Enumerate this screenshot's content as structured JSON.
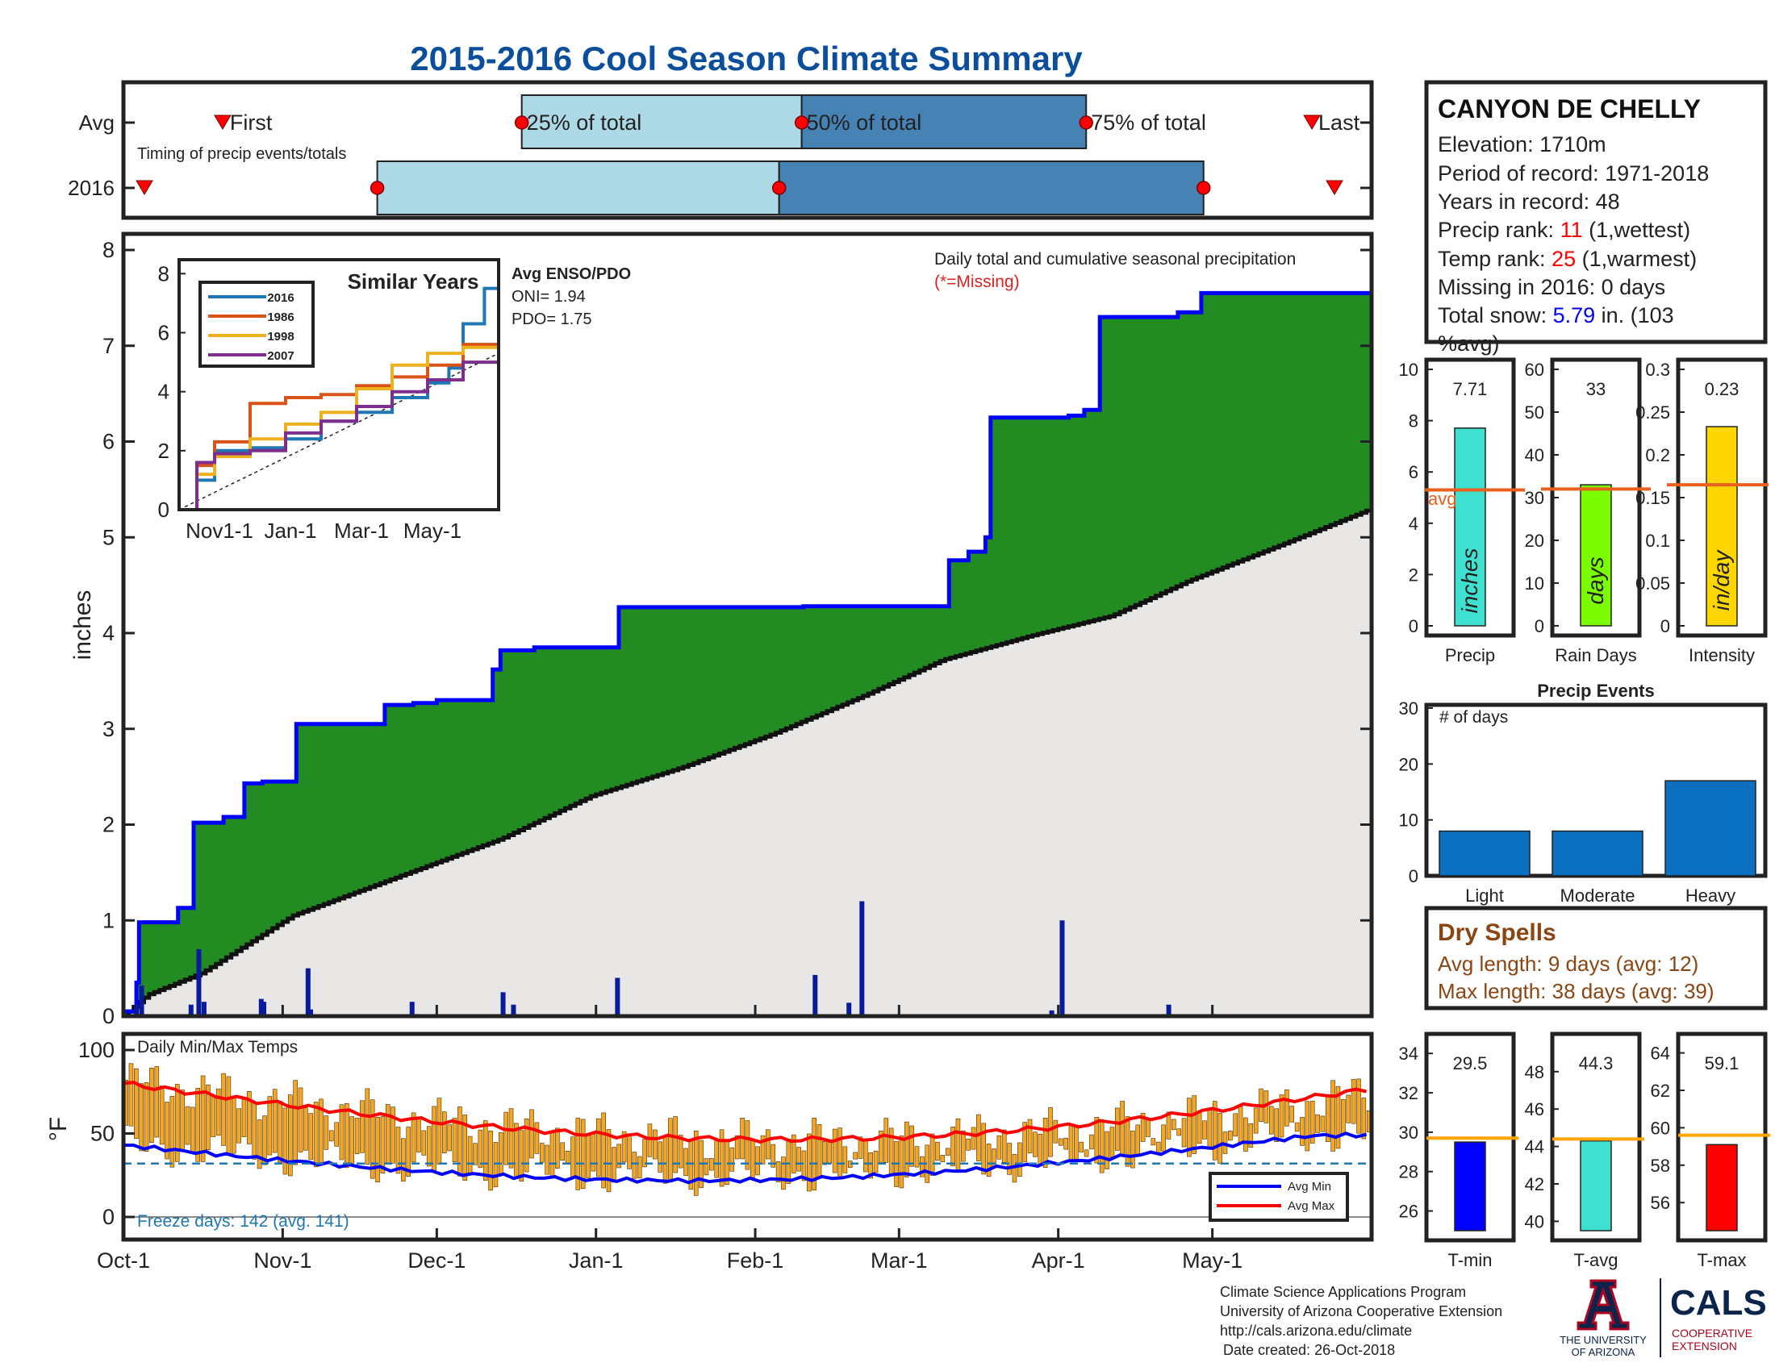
{
  "title": "2015-2016 Cool Season Climate Summary",
  "colors": {
    "title": "#0b4f9c",
    "green": "#228b22",
    "blue_line": "#0000ff",
    "avg_fill": "#e8e7e6",
    "daily_bar": "#0a1a9c",
    "light_blue": "#add8e6",
    "steel_blue": "#4682b4",
    "event_red": "#ff0000",
    "avg_line": "#e8601c",
    "bar_turquoise": "#40e0d0",
    "bar_lime": "#7cfc00",
    "bar_gold": "#ffd700",
    "events_bar": "#0a6fbf",
    "dry_brown": "#8b4513",
    "temp_orange": "#f5a623",
    "tmin_blue": "#0000ff",
    "tmax_red": "#ff0000",
    "freeze_blue": "#1f77b4",
    "rank_red": "#ff0000",
    "snow_blue": "#0000ff"
  },
  "timing": {
    "rows": [
      "Avg",
      "2016"
    ],
    "caption": "Timing of precip events/totals",
    "labels": {
      "first": "First",
      "p25": "25% of total",
      "p50": "50% of total",
      "p75": "75% of total",
      "last": "Last"
    },
    "avg": {
      "first": 20,
      "p25": 85,
      "p50": 147,
      "p75": 210,
      "last": 260
    },
    "y2016": {
      "first": 5,
      "p25": 53,
      "p50": 142,
      "p75": 236,
      "last": 265
    },
    "range": [
      0,
      250
    ]
  },
  "station": {
    "name": "CANYON DE CHELLY",
    "elevation": "Elevation: 1710m",
    "period": "Period of record: 1971-2018",
    "years": "Years in record: 48",
    "precip_rank_label": "Precip rank:",
    "precip_rank": "11",
    "precip_rank_note": "(1,wettest)",
    "temp_rank_label": "Temp rank:",
    "temp_rank": "25",
    "temp_rank_note": "(1,warmest)",
    "missing": "Missing in 2016: 0 days",
    "snow_label": "Total snow:",
    "snow_value": "5.79",
    "snow_note_1": "in. (103",
    "snow_note_2": "%avg)"
  },
  "main": {
    "ylabel": "inches",
    "legend_line1": "Daily total and cumulative seasonal precipitation",
    "legend_line2": "(*=Missing)",
    "y_ticks": [
      "0",
      "1",
      "2",
      "3",
      "4",
      "5",
      "6",
      "7",
      "8"
    ],
    "ylim": [
      0,
      8
    ],
    "x_ticks": [
      "Oct-1",
      "Nov-1",
      "Dec-1",
      "Jan-1",
      "Feb-1",
      "Mar-1",
      "Apr-1",
      "May-1"
    ],
    "x_tick_days": [
      0,
      31,
      61,
      92,
      123,
      151,
      182,
      212
    ],
    "days": 243
  },
  "inset": {
    "title": "Similar Years",
    "y_ticks": [
      "0",
      "2",
      "4",
      "6",
      "8"
    ],
    "x_ticks": [
      "Nov1-1",
      "Jan-1",
      "Mar-1",
      "May-1"
    ],
    "legend": [
      "2016",
      "1986",
      "1998",
      "2007"
    ],
    "enso_title": "Avg ENSO/PDO",
    "oni": "ONI= 1.94",
    "pdo": "PDO= 1.75"
  },
  "bars": {
    "precip": {
      "value": "7.71",
      "num": 7.71,
      "avg": 5.3,
      "ylim": [
        0,
        10
      ],
      "ticks": [
        "0",
        "2",
        "4",
        "6",
        "8",
        "10"
      ],
      "unit": "inches",
      "label": "Precip",
      "avg_label": "avg"
    },
    "rain_days": {
      "value": "33",
      "num": 33,
      "avg": 32,
      "ylim": [
        0,
        60
      ],
      "ticks": [
        "0",
        "10",
        "20",
        "30",
        "40",
        "50",
        "60"
      ],
      "unit": "days",
      "label": "Rain Days"
    },
    "intensity": {
      "value": "0.23",
      "num": 0.233,
      "avg": 0.165,
      "ylim": [
        0,
        0.3
      ],
      "ticks": [
        "0",
        "0.05",
        "0.1",
        "0.15",
        "0.2",
        "0.25",
        "0.3"
      ],
      "unit": "in/day",
      "label": "Intensity"
    }
  },
  "events": {
    "title": "Precip Events",
    "ylabel": "# of days",
    "categories": [
      "Light",
      "Moderate",
      "Heavy"
    ],
    "values": [
      8,
      8,
      17
    ],
    "ylim": [
      0,
      30
    ],
    "ticks": [
      "0",
      "10",
      "20",
      "30"
    ]
  },
  "dry_spells": {
    "title": "Dry Spells",
    "avg_length": "Avg length: 9 days (avg: 12)",
    "max_length": "Max length: 38 days (avg: 39)"
  },
  "temps": {
    "title": "Daily Min/Max Temps",
    "ylabel": "°F",
    "y_ticks": [
      "0",
      "50",
      "100"
    ],
    "ylim": [
      0,
      100
    ],
    "freeze": "Freeze days: 142 (avg. 141)",
    "legend": [
      "Avg Min",
      "Avg Max"
    ]
  },
  "temp_bars": {
    "tmin": {
      "value": "29.5",
      "num": 29.5,
      "avg": 29.7,
      "ylim": [
        25,
        34.5
      ],
      "ticks": [
        "26",
        "28",
        "30",
        "32",
        "34"
      ],
      "label": "T-min"
    },
    "tavg": {
      "value": "44.3",
      "num": 44.3,
      "avg": 44.4,
      "ylim": [
        39.5,
        49.5
      ],
      "ticks": [
        "40",
        "42",
        "44",
        "46",
        "48"
      ],
      "label": "T-avg"
    },
    "tmax": {
      "value": "59.1",
      "num": 59.1,
      "avg": 59.6,
      "ylim": [
        54.5,
        64.5
      ],
      "ticks": [
        "56",
        "58",
        "60",
        "62",
        "64"
      ],
      "label": "T-max"
    }
  },
  "footer": {
    "line1": "Climate Science Applications Program",
    "line2": "University of Arizona Cooperative Extension",
    "line3": "http://cals.arizona.edu/climate",
    "line4": "Date created: 26-Oct-2018",
    "ua_line1": "THE UNIVERSITY",
    "ua_line2": "OF ARIZONA",
    "cals": "CALS",
    "cals_line1": "COOPERATIVE",
    "cals_line2": "EXTENSION"
  },
  "chart_data": [
    {
      "type": "area",
      "title": "Daily total and cumulative seasonal precipitation",
      "ylabel": "inches",
      "ylim": [
        0,
        8
      ],
      "x_start": "Oct-1",
      "cumulative_2016_steps": [
        [
          0,
          0.05
        ],
        [
          10,
          0.35
        ],
        [
          12,
          0.98
        ],
        [
          42,
          1.13
        ],
        [
          54,
          2.02
        ],
        [
          77,
          2.08
        ],
        [
          93,
          2.43
        ],
        [
          107,
          2.45
        ],
        [
          133,
          3.05
        ],
        [
          201,
          3.25
        ],
        [
          223,
          3.27
        ],
        [
          241,
          3.3
        ],
        [
          284,
          3.62
        ],
        [
          290,
          3.82
        ],
        [
          316,
          3.85
        ],
        [
          381,
          4.27
        ],
        [
          523,
          4.28
        ],
        [
          561,
          4.28
        ],
        [
          619,
          4.28
        ],
        [
          635,
          4.76
        ],
        [
          650,
          4.85
        ],
        [
          663,
          5.0
        ],
        [
          667,
          6.25
        ],
        [
          727,
          6.27
        ],
        [
          739,
          6.33
        ],
        [
          751,
          7.3
        ],
        [
          811,
          7.35
        ],
        [
          829,
          7.55
        ],
        [
          890,
          7.55
        ]
      ],
      "cumulative_avg": [
        [
          0,
          0.0
        ],
        [
          18,
          0.22
        ],
        [
          60,
          0.45
        ],
        [
          130,
          1.05
        ],
        [
          220,
          1.5
        ],
        [
          290,
          1.85
        ],
        [
          360,
          2.3
        ],
        [
          430,
          2.6
        ],
        [
          500,
          2.95
        ],
        [
          570,
          3.35
        ],
        [
          630,
          3.72
        ],
        [
          700,
          3.98
        ],
        [
          760,
          4.18
        ],
        [
          820,
          4.55
        ],
        [
          890,
          4.92
        ],
        [
          960,
          5.3
        ]
      ],
      "daily_peaks": [
        [
          10,
          0.12
        ],
        [
          14,
          0.32
        ],
        [
          52,
          0.12
        ],
        [
          58,
          0.7
        ],
        [
          62,
          0.15
        ],
        [
          106,
          0.18
        ],
        [
          108,
          0.15
        ],
        [
          142,
          0.5
        ],
        [
          144,
          0.07
        ],
        [
          222,
          0.15
        ],
        [
          292,
          0.25
        ],
        [
          300,
          0.12
        ],
        [
          380,
          0.4
        ],
        [
          532,
          0.43
        ],
        [
          558,
          0.14
        ],
        [
          568,
          1.2
        ],
        [
          714,
          0.06
        ],
        [
          722,
          1.0
        ],
        [
          804,
          0.12
        ]
      ]
    },
    {
      "type": "line",
      "title": "Similar Years",
      "series": [
        {
          "name": "2016",
          "x": [
            0,
            0.5,
            1,
            2,
            3,
            4,
            5,
            6,
            7,
            7.6,
            8,
            8.6,
            9
          ],
          "y": [
            0,
            1.0,
            2.0,
            2.1,
            2.4,
            3.0,
            3.3,
            3.8,
            4.3,
            4.8,
            6.3,
            7.5,
            7.7
          ]
        },
        {
          "name": "1986",
          "x": [
            0,
            0.5,
            1,
            2,
            3,
            4,
            5,
            6,
            7,
            8,
            9
          ],
          "y": [
            0,
            1.5,
            2.3,
            3.6,
            3.8,
            3.9,
            4.2,
            4.5,
            4.9,
            5.6,
            5.7
          ]
        },
        {
          "name": "1998",
          "x": [
            0,
            0.5,
            1,
            2,
            3,
            4,
            5,
            6,
            7,
            8,
            9
          ],
          "y": [
            0,
            1.2,
            1.8,
            2.4,
            2.9,
            3.3,
            4.1,
            4.9,
            5.3,
            5.5,
            5.7
          ]
        },
        {
          "name": "2007",
          "x": [
            0,
            0.5,
            1,
            2,
            3,
            4,
            5,
            6,
            7,
            8,
            9
          ],
          "y": [
            0,
            1.6,
            1.9,
            2.0,
            2.6,
            3.0,
            3.5,
            4.0,
            4.4,
            5.0,
            5.7
          ]
        }
      ],
      "ylim": [
        0,
        8
      ]
    },
    {
      "type": "bar",
      "title": "Precip Events",
      "categories": [
        "Light",
        "Moderate",
        "Heavy"
      ],
      "values": [
        8,
        8,
        17
      ],
      "ylim": [
        0,
        30
      ]
    }
  ]
}
